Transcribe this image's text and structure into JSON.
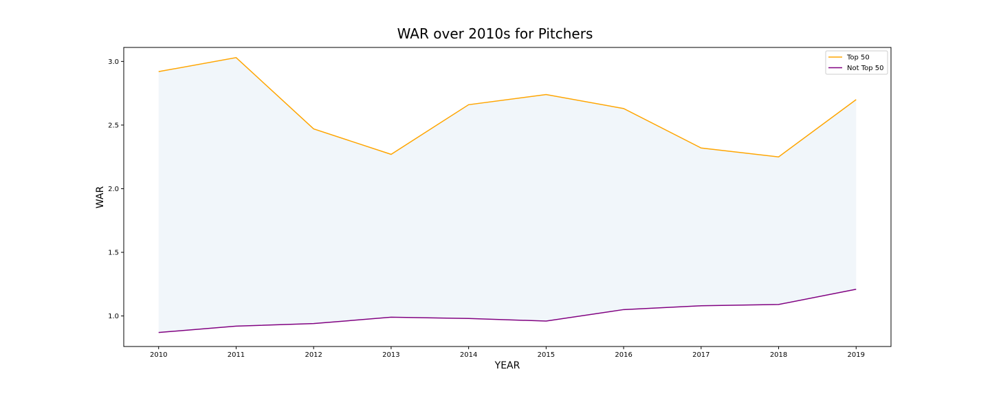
{
  "chart_data": {
    "type": "area",
    "title": "WAR over 2010s for Pitchers",
    "xlabel": "YEAR",
    "ylabel": "WAR",
    "x": [
      2010,
      2011,
      2012,
      2013,
      2014,
      2015,
      2016,
      2017,
      2018,
      2019
    ],
    "x_ticks": [
      "2010",
      "2011",
      "2012",
      "2013",
      "2014",
      "2015",
      "2016",
      "2017",
      "2018",
      "2019"
    ],
    "y_ticks": [
      "1.0",
      "1.5",
      "2.0",
      "2.5",
      "3.0"
    ],
    "ylim": [
      0.76,
      3.11
    ],
    "xlim": [
      2009.55,
      2019.45
    ],
    "grid": false,
    "legend_position": "top-right",
    "fill_between": {
      "upper": "Top 50",
      "lower": "Not Top 50",
      "color": "#f1f6fa"
    },
    "series": [
      {
        "name": "Top 50",
        "color": "#ffa500",
        "values": [
          2.92,
          3.03,
          2.47,
          2.27,
          2.66,
          2.74,
          2.63,
          2.32,
          2.25,
          2.7
        ]
      },
      {
        "name": "Not Top 50",
        "color": "#800080",
        "values": [
          0.87,
          0.92,
          0.94,
          0.99,
          0.98,
          0.96,
          1.05,
          1.08,
          1.09,
          1.21
        ]
      }
    ]
  }
}
